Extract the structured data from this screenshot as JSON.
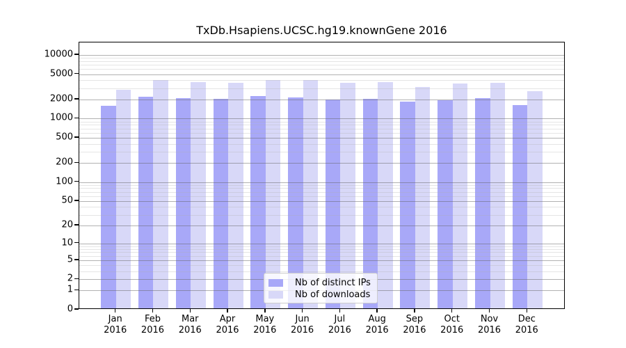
{
  "title": "TxDb.Hsapiens.UCSC.hg19.knownGene 2016",
  "legend": {
    "items": [
      {
        "label": "Nb of distinct IPs",
        "color": "#a8a8f8"
      },
      {
        "label": "Nb of downloads",
        "color": "#d8d8f8"
      }
    ]
  },
  "chart_data": {
    "type": "bar",
    "title": "TxDb.Hsapiens.UCSC.hg19.knownGene 2016",
    "categories": [
      "Jan",
      "Feb",
      "Mar",
      "Apr",
      "May",
      "Jun",
      "Jul",
      "Aug",
      "Sep",
      "Oct",
      "Nov",
      "Dec"
    ],
    "x_tick_year": "2016",
    "series": [
      {
        "name": "Nb of distinct IPs",
        "color": "#a8a8f8",
        "values": [
          1500,
          2100,
          2000,
          1950,
          2150,
          2050,
          1900,
          1950,
          1750,
          1850,
          2000,
          1550
        ]
      },
      {
        "name": "Nb of downloads",
        "color": "#d8d8f8",
        "values": [
          2700,
          3800,
          3600,
          3450,
          3800,
          3800,
          3450,
          3550,
          3000,
          3350,
          3450,
          2550
        ]
      }
    ],
    "ylabel": "",
    "xlabel": "",
    "y_axis": {
      "scale": "log10(value+1)",
      "tick_labels": [
        10000,
        5000,
        2000,
        1000,
        500,
        200,
        100,
        50,
        20,
        10,
        5,
        2,
        1,
        0
      ],
      "minor_gridline_multipliers": [
        3,
        4,
        6,
        7,
        8,
        9
      ],
      "ylim": [
        0,
        13000
      ]
    },
    "grid": "major-and-minor, drawn over bars",
    "legend_position": "inside bottom-center"
  }
}
